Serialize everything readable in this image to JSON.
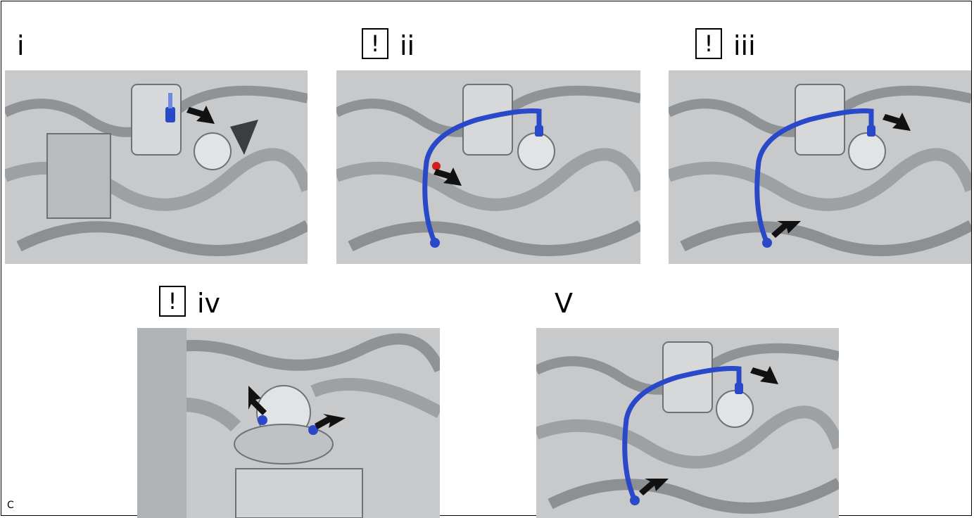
{
  "panels": [
    {
      "id": "i",
      "label": "i",
      "caution": false,
      "caution_symbol": ""
    },
    {
      "id": "ii",
      "label": "ii",
      "caution": true,
      "caution_symbol": "!"
    },
    {
      "id": "iii",
      "label": "iii",
      "caution": true,
      "caution_symbol": "!"
    },
    {
      "id": "iv",
      "label": "iv",
      "caution": true,
      "caution_symbol": "!"
    },
    {
      "id": "v",
      "label": "V",
      "caution": false,
      "caution_symbol": ""
    }
  ],
  "illustration_code": "C",
  "colors": {
    "highlight_part": "#2a49c8",
    "highlight_light": "#6f8ae0",
    "arrow": "#111111",
    "engine_metal": "#c9cbcd",
    "red_marker": "#d21f1f"
  },
  "icons": {
    "caution": "caution-icon",
    "arrow": "pointer-arrow-icon"
  }
}
